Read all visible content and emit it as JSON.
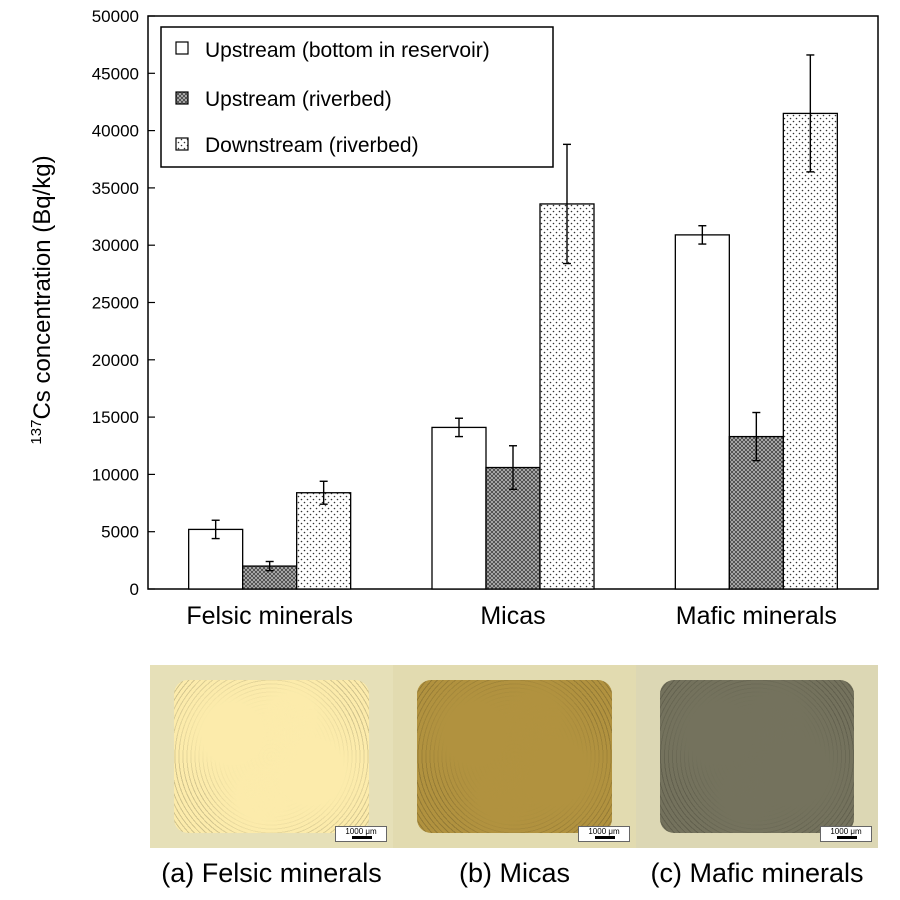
{
  "chart_data": {
    "type": "bar",
    "ylabel_superscript": "137",
    "ylabel": "Cs concentration (Bq/kg)",
    "ylim": [
      0,
      50000
    ],
    "yticks": [
      "0",
      "5000",
      "10000",
      "15000",
      "20000",
      "25000",
      "30000",
      "35000",
      "40000",
      "45000",
      "50000"
    ],
    "categories": [
      "Felsic minerals",
      "Micas",
      "Mafic minerals"
    ],
    "series": [
      {
        "name": "Upstream (bottom in reservoir)",
        "pattern": "white",
        "values": [
          5200,
          14100,
          30900
        ],
        "errors": [
          800,
          800,
          800
        ]
      },
      {
        "name": "Upstream (riverbed)",
        "pattern": "crosshatch",
        "values": [
          2000,
          10600,
          13300
        ],
        "errors": [
          400,
          1900,
          2100
        ]
      },
      {
        "name": "Downstream (riverbed)",
        "pattern": "dots",
        "values": [
          8400,
          33600,
          41500
        ],
        "errors": [
          1000,
          5200,
          5100
        ]
      }
    ],
    "legend_position": "top-left",
    "grid": false,
    "error_bars": true
  },
  "photos": [
    {
      "caption": "(a) Felsic minerals",
      "scale": "1000 μm",
      "bg": "#e6e0b8",
      "tint": "#f3e3a6"
    },
    {
      "caption": "(b) Micas",
      "scale": "1000 μm",
      "bg": "#e2dbb0",
      "tint": "#a88a3a"
    },
    {
      "caption": "(c) Mafic minerals",
      "scale": "1000 μm",
      "bg": "#dcd7b4",
      "tint": "#6b6a58"
    }
  ]
}
